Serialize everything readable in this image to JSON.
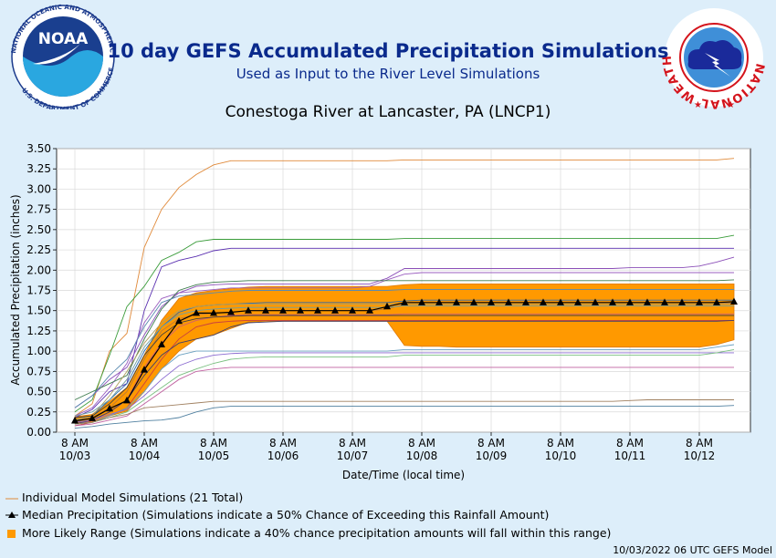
{
  "header": {
    "title": "10 day GEFS Accumulated Precipitation Simulations",
    "subtitle": "Used as Input to the River Level Simulations",
    "station": "Conestoga River at Lancaster, PA (LNCP1)",
    "noaa_logo_text": "NOAA",
    "noaa_ring_text": "NATIONAL OCEANIC AND ATMOSPHERIC ADMINISTRATION",
    "noaa_dept_text": "U.S. DEPARTMENT OF COMMERCE",
    "nws_ring_text": "NATIONAL WEATHER SERVICE"
  },
  "legend": {
    "individual": "Individual Model Simulations (21 Total)",
    "median": "Median Precipitation (Simulations indicate a 50% Chance of Exceeding this Rainfall Amount)",
    "range": "More Likely Range (Simulations indicate a 40% chance precipitation amounts will fall within this range)"
  },
  "footer": "10/03/2022 06 UTC GEFS Model",
  "colors": {
    "background": "#ddeefa",
    "title": "#0a2a8c",
    "range_fill": "#ff9900",
    "median": "#000000"
  },
  "chart_data": {
    "type": "line",
    "xlabel": "Date/Time (local time)",
    "ylabel": "Accumulated Precipitation (inches)",
    "ylim": [
      0,
      3.5
    ],
    "yticks": [
      "0.00",
      "0.25",
      "0.50",
      "0.75",
      "1.00",
      "1.25",
      "1.50",
      "1.75",
      "2.00",
      "2.25",
      "2.50",
      "2.75",
      "3.00",
      "3.25",
      "3.50"
    ],
    "xlim": [
      "10/03 8 AM",
      "10/12 8 PM"
    ],
    "xticks": [
      {
        "t": "8 AM",
        "d": "10/03"
      },
      {
        "t": "8 AM",
        "d": "10/04"
      },
      {
        "t": "8 AM",
        "d": "10/05"
      },
      {
        "t": "8 AM",
        "d": "10/06"
      },
      {
        "t": "8 AM",
        "d": "10/07"
      },
      {
        "t": "8 AM",
        "d": "10/08"
      },
      {
        "t": "8 AM",
        "d": "10/09"
      },
      {
        "t": "8 AM",
        "d": "10/10"
      },
      {
        "t": "8 AM",
        "d": "10/11"
      },
      {
        "t": "8 AM",
        "d": "10/12"
      }
    ],
    "grid": true,
    "time_step_hours": 6,
    "time_start": "10/03 8 AM",
    "median": [
      0.14,
      0.17,
      0.29,
      0.39,
      0.77,
      1.08,
      1.37,
      1.47,
      1.47,
      1.48,
      1.5,
      1.5,
      1.5,
      1.5,
      1.5,
      1.5,
      1.5,
      1.5,
      1.55,
      1.6,
      1.6,
      1.6,
      1.6,
      1.6,
      1.6,
      1.6,
      1.6,
      1.6,
      1.6,
      1.6,
      1.6,
      1.6,
      1.6,
      1.6,
      1.6,
      1.6,
      1.6,
      1.6,
      1.61
    ],
    "range_high": [
      0.19,
      0.22,
      0.38,
      0.55,
      0.95,
      1.38,
      1.65,
      1.72,
      1.75,
      1.77,
      1.79,
      1.8,
      1.8,
      1.8,
      1.8,
      1.8,
      1.8,
      1.8,
      1.8,
      1.82,
      1.83,
      1.83,
      1.83,
      1.83,
      1.83,
      1.83,
      1.83,
      1.83,
      1.83,
      1.83,
      1.83,
      1.83,
      1.83,
      1.83,
      1.83,
      1.83,
      1.83,
      1.83,
      1.83
    ],
    "range_low": [
      0.11,
      0.13,
      0.2,
      0.26,
      0.5,
      0.78,
      1.0,
      1.15,
      1.2,
      1.28,
      1.36,
      1.37,
      1.37,
      1.37,
      1.37,
      1.37,
      1.37,
      1.37,
      1.37,
      1.07,
      1.06,
      1.06,
      1.05,
      1.05,
      1.05,
      1.05,
      1.05,
      1.05,
      1.05,
      1.05,
      1.05,
      1.05,
      1.05,
      1.05,
      1.05,
      1.05,
      1.05,
      1.08,
      1.14
    ],
    "individual_colors": [
      "#e08a3a",
      "#3a9c3a",
      "#5a2fb0",
      "#8b4fb8",
      "#9b5fc0",
      "#3a7a4a",
      "#5a8ab0",
      "#2a6ab0",
      "#b87a3a",
      "#d06070",
      "#c84040",
      "#40406a",
      "#6aa0c0",
      "#8a6ad0",
      "#7ac080",
      "#c060a0",
      "#a08060",
      "#5080a0",
      "#b0a060",
      "#70a0a0",
      "#404040"
    ],
    "individual": [
      [
        0.2,
        0.35,
        1.0,
        1.22,
        2.28,
        2.75,
        3.02,
        3.18,
        3.3,
        3.35,
        3.35,
        3.35,
        3.35,
        3.35,
        3.35,
        3.35,
        3.35,
        3.35,
        3.35,
        3.36,
        3.36,
        3.36,
        3.36,
        3.36,
        3.36,
        3.36,
        3.36,
        3.36,
        3.36,
        3.36,
        3.36,
        3.36,
        3.36,
        3.36,
        3.36,
        3.36,
        3.36,
        3.36,
        3.38
      ],
      [
        0.25,
        0.4,
        0.95,
        1.55,
        1.8,
        2.12,
        2.22,
        2.35,
        2.38,
        2.38,
        2.38,
        2.38,
        2.38,
        2.38,
        2.38,
        2.38,
        2.38,
        2.38,
        2.38,
        2.39,
        2.39,
        2.39,
        2.39,
        2.39,
        2.39,
        2.39,
        2.39,
        2.39,
        2.39,
        2.39,
        2.39,
        2.39,
        2.39,
        2.39,
        2.39,
        2.39,
        2.39,
        2.39,
        2.43
      ],
      [
        0.18,
        0.28,
        0.5,
        0.6,
        1.5,
        2.04,
        2.12,
        2.17,
        2.24,
        2.27,
        2.27,
        2.27,
        2.27,
        2.27,
        2.27,
        2.27,
        2.27,
        2.27,
        2.27,
        2.27,
        2.27,
        2.27,
        2.27,
        2.27,
        2.27,
        2.27,
        2.27,
        2.27,
        2.27,
        2.27,
        2.27,
        2.27,
        2.27,
        2.27,
        2.27,
        2.27,
        2.27,
        2.27,
        2.27
      ],
      [
        0.3,
        0.45,
        0.65,
        0.8,
        1.2,
        1.55,
        1.72,
        1.8,
        1.82,
        1.83,
        1.83,
        1.83,
        1.83,
        1.83,
        1.83,
        1.83,
        1.83,
        1.83,
        1.9,
        2.02,
        2.02,
        2.02,
        2.02,
        2.02,
        2.02,
        2.02,
        2.02,
        2.02,
        2.02,
        2.02,
        2.02,
        2.02,
        2.03,
        2.03,
        2.03,
        2.03,
        2.05,
        2.1,
        2.16
      ],
      [
        0.2,
        0.3,
        0.55,
        0.85,
        1.35,
        1.65,
        1.72,
        1.74,
        1.76,
        1.78,
        1.78,
        1.78,
        1.78,
        1.78,
        1.78,
        1.78,
        1.78,
        1.8,
        1.88,
        1.95,
        1.97,
        1.97,
        1.97,
        1.97,
        1.97,
        1.97,
        1.97,
        1.97,
        1.97,
        1.97,
        1.97,
        1.97,
        1.97,
        1.97,
        1.97,
        1.97,
        1.97,
        1.97,
        1.97
      ],
      [
        0.4,
        0.5,
        0.6,
        0.7,
        1.15,
        1.52,
        1.75,
        1.82,
        1.85,
        1.86,
        1.87,
        1.87,
        1.87,
        1.87,
        1.87,
        1.87,
        1.87,
        1.87,
        1.87,
        1.87,
        1.87,
        1.87,
        1.87,
        1.87,
        1.87,
        1.87,
        1.87,
        1.87,
        1.87,
        1.87,
        1.87,
        1.87,
        1.87,
        1.87,
        1.87,
        1.87,
        1.87,
        1.87,
        1.88
      ],
      [
        0.3,
        0.45,
        0.7,
        0.9,
        1.3,
        1.6,
        1.68,
        1.7,
        1.72,
        1.74,
        1.75,
        1.75,
        1.75,
        1.75,
        1.75,
        1.75,
        1.75,
        1.75,
        1.75,
        1.76,
        1.76,
        1.76,
        1.76,
        1.76,
        1.76,
        1.76,
        1.76,
        1.76,
        1.76,
        1.76,
        1.76,
        1.76,
        1.76,
        1.76,
        1.76,
        1.76,
        1.76,
        1.76,
        1.76
      ],
      [
        0.15,
        0.2,
        0.4,
        0.6,
        1.0,
        1.3,
        1.48,
        1.55,
        1.57,
        1.58,
        1.59,
        1.6,
        1.6,
        1.6,
        1.6,
        1.6,
        1.6,
        1.6,
        1.6,
        1.62,
        1.63,
        1.63,
        1.63,
        1.63,
        1.63,
        1.63,
        1.63,
        1.63,
        1.63,
        1.63,
        1.63,
        1.63,
        1.63,
        1.63,
        1.63,
        1.63,
        1.63,
        1.63,
        1.63
      ],
      [
        0.12,
        0.18,
        0.3,
        0.5,
        0.9,
        1.25,
        1.4,
        1.45,
        1.47,
        1.48,
        1.5,
        1.5,
        1.5,
        1.5,
        1.5,
        1.5,
        1.5,
        1.5,
        1.52,
        1.58,
        1.58,
        1.58,
        1.58,
        1.58,
        1.58,
        1.58,
        1.58,
        1.58,
        1.58,
        1.58,
        1.58,
        1.58,
        1.58,
        1.58,
        1.58,
        1.58,
        1.58,
        1.58,
        1.6
      ],
      [
        0.1,
        0.14,
        0.25,
        0.4,
        0.8,
        1.1,
        1.3,
        1.38,
        1.42,
        1.44,
        1.45,
        1.45,
        1.45,
        1.45,
        1.45,
        1.45,
        1.45,
        1.45,
        1.45,
        1.46,
        1.46,
        1.46,
        1.46,
        1.46,
        1.46,
        1.46,
        1.46,
        1.46,
        1.46,
        1.46,
        1.46,
        1.46,
        1.46,
        1.46,
        1.46,
        1.46,
        1.46,
        1.46,
        1.46
      ],
      [
        0.08,
        0.12,
        0.2,
        0.3,
        0.6,
        0.9,
        1.15,
        1.3,
        1.35,
        1.37,
        1.38,
        1.38,
        1.38,
        1.38,
        1.38,
        1.38,
        1.38,
        1.38,
        1.38,
        1.38,
        1.38,
        1.38,
        1.38,
        1.38,
        1.38,
        1.38,
        1.38,
        1.38,
        1.38,
        1.38,
        1.38,
        1.38,
        1.38,
        1.38,
        1.38,
        1.38,
        1.38,
        1.38,
        1.38
      ],
      [
        0.1,
        0.15,
        0.25,
        0.4,
        0.7,
        0.95,
        1.1,
        1.15,
        1.2,
        1.3,
        1.35,
        1.36,
        1.37,
        1.37,
        1.37,
        1.37,
        1.37,
        1.37,
        1.37,
        1.37,
        1.37,
        1.37,
        1.37,
        1.37,
        1.37,
        1.37,
        1.37,
        1.37,
        1.37,
        1.37,
        1.37,
        1.37,
        1.37,
        1.37,
        1.37,
        1.37,
        1.37,
        1.37,
        1.38
      ],
      [
        0.1,
        0.12,
        0.2,
        0.3,
        0.5,
        0.78,
        0.95,
        1.0,
        1.0,
        1.0,
        1.0,
        1.0,
        1.0,
        1.0,
        1.0,
        1.0,
        1.0,
        1.0,
        1.0,
        1.02,
        1.02,
        1.02,
        1.02,
        1.02,
        1.02,
        1.02,
        1.02,
        1.02,
        1.02,
        1.02,
        1.02,
        1.02,
        1.02,
        1.02,
        1.02,
        1.02,
        1.02,
        1.05,
        1.08
      ],
      [
        0.12,
        0.15,
        0.22,
        0.28,
        0.45,
        0.65,
        0.82,
        0.9,
        0.95,
        0.97,
        0.98,
        0.98,
        0.98,
        0.98,
        0.98,
        0.98,
        0.98,
        0.98,
        0.98,
        0.98,
        0.98,
        0.98,
        0.98,
        0.98,
        0.98,
        0.98,
        0.98,
        0.98,
        0.98,
        0.98,
        0.98,
        0.98,
        0.98,
        0.98,
        0.98,
        0.98,
        0.98,
        0.98,
        0.98
      ],
      [
        0.1,
        0.12,
        0.18,
        0.25,
        0.4,
        0.55,
        0.7,
        0.78,
        0.85,
        0.9,
        0.92,
        0.93,
        0.93,
        0.93,
        0.93,
        0.93,
        0.93,
        0.93,
        0.93,
        0.95,
        0.95,
        0.95,
        0.95,
        0.95,
        0.95,
        0.95,
        0.95,
        0.95,
        0.95,
        0.95,
        0.95,
        0.95,
        0.95,
        0.95,
        0.95,
        0.95,
        0.95,
        0.98,
        1.02
      ],
      [
        0.08,
        0.1,
        0.15,
        0.2,
        0.35,
        0.5,
        0.65,
        0.75,
        0.78,
        0.8,
        0.8,
        0.8,
        0.8,
        0.8,
        0.8,
        0.8,
        0.8,
        0.8,
        0.8,
        0.8,
        0.8,
        0.8,
        0.8,
        0.8,
        0.8,
        0.8,
        0.8,
        0.8,
        0.8,
        0.8,
        0.8,
        0.8,
        0.8,
        0.8,
        0.8,
        0.8,
        0.8,
        0.8,
        0.8
      ],
      [
        0.1,
        0.12,
        0.18,
        0.22,
        0.3,
        0.32,
        0.34,
        0.36,
        0.38,
        0.38,
        0.38,
        0.38,
        0.38,
        0.38,
        0.38,
        0.38,
        0.38,
        0.38,
        0.38,
        0.38,
        0.38,
        0.38,
        0.38,
        0.38,
        0.38,
        0.38,
        0.38,
        0.38,
        0.38,
        0.38,
        0.38,
        0.38,
        0.39,
        0.4,
        0.4,
        0.4,
        0.4,
        0.4,
        0.4
      ],
      [
        0.05,
        0.07,
        0.1,
        0.12,
        0.14,
        0.15,
        0.18,
        0.25,
        0.3,
        0.32,
        0.32,
        0.32,
        0.32,
        0.32,
        0.32,
        0.32,
        0.32,
        0.32,
        0.32,
        0.32,
        0.32,
        0.32,
        0.32,
        0.32,
        0.32,
        0.32,
        0.32,
        0.32,
        0.32,
        0.32,
        0.32,
        0.32,
        0.32,
        0.32,
        0.32,
        0.32,
        0.32,
        0.32,
        0.33
      ],
      [
        0.15,
        0.2,
        0.45,
        0.75,
        1.1,
        1.35,
        1.5,
        1.55,
        1.57,
        1.58,
        1.58,
        1.58,
        1.58,
        1.58,
        1.58,
        1.58,
        1.58,
        1.58,
        1.58,
        1.58,
        1.58,
        1.58,
        1.58,
        1.58,
        1.58,
        1.58,
        1.58,
        1.58,
        1.58,
        1.58,
        1.58,
        1.58,
        1.58,
        1.58,
        1.58,
        1.58,
        1.58,
        1.58,
        1.58
      ],
      [
        0.2,
        0.25,
        0.4,
        0.65,
        1.05,
        1.3,
        1.45,
        1.5,
        1.52,
        1.53,
        1.54,
        1.54,
        1.54,
        1.54,
        1.54,
        1.54,
        1.54,
        1.54,
        1.54,
        1.56,
        1.56,
        1.56,
        1.56,
        1.56,
        1.56,
        1.56,
        1.56,
        1.56,
        1.56,
        1.56,
        1.56,
        1.56,
        1.56,
        1.56,
        1.56,
        1.56,
        1.56,
        1.56,
        1.56
      ],
      [
        0.18,
        0.2,
        0.35,
        0.55,
        0.95,
        1.2,
        1.35,
        1.4,
        1.42,
        1.43,
        1.44,
        1.44,
        1.44,
        1.44,
        1.44,
        1.44,
        1.44,
        1.44,
        1.44,
        1.44,
        1.44,
        1.44,
        1.44,
        1.44,
        1.44,
        1.44,
        1.44,
        1.44,
        1.44,
        1.44,
        1.44,
        1.44,
        1.44,
        1.44,
        1.44,
        1.44,
        1.44,
        1.44,
        1.44
      ]
    ]
  }
}
